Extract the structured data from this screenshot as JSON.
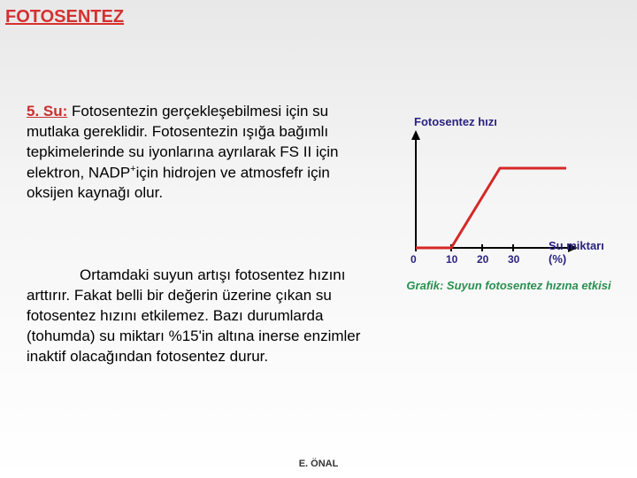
{
  "header": "FOTOSENTEZ",
  "para1": {
    "heading": "5. Su:",
    "text_before_sup": " Fotosentezin gerçekleşebilmesi için su mutlaka gereklidir. Fotosentezin ışığa bağımlı tepkimelerinde su iyonlarına ayrılarak FS II için elektron, NADP",
    "sup": "+",
    "text_after_sup": "için hidrojen ve atmosfefr için oksijen kaynağı olur."
  },
  "para2": "Ortamdaki suyun artışı fotosentez hızını arttırır. Fakat belli bir değerin üzerine çıkan su fotosentez hızını etkilemez. Bazı durumlarda (tohumda) su miktarı %15'in altına inerse enzimler inaktif olacağından fotosentez durur.",
  "chart": {
    "type": "line",
    "y_label": "Fotosentez hızı",
    "x_label": "Su miktarı (%)",
    "caption": "Grafik: Suyun fotosentez hızına etkisi",
    "width": 180,
    "height": 130,
    "axis_color": "#000000",
    "line_color": "#d62828",
    "line_width": 3,
    "x_ticks": [
      0,
      10,
      20,
      30
    ],
    "x_tick_positions": [
      0,
      40,
      75,
      110
    ],
    "points": [
      {
        "x": 0,
        "y": 130
      },
      {
        "x": 40,
        "y": 130
      },
      {
        "x": 95,
        "y": 40
      },
      {
        "x": 170,
        "y": 40
      }
    ],
    "arrow_size": 8
  },
  "footer": "E. ÖNAL"
}
